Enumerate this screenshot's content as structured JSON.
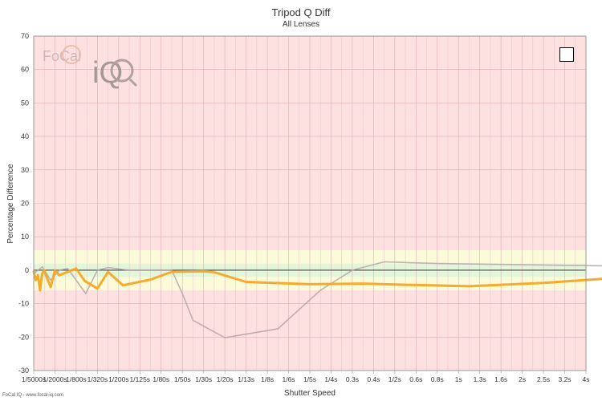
{
  "chart_data": {
    "type": "line",
    "title": "Tripod Q Diff",
    "subtitle": "All Lenses",
    "xlabel": "Shutter Speed",
    "ylabel": "Percentage Difference",
    "ylim": [
      -30,
      70
    ],
    "yticks": [
      70,
      60,
      50,
      40,
      30,
      20,
      10,
      0,
      -10,
      -20,
      -30
    ],
    "categories": [
      "1/5000s",
      "1/2000s",
      "1/800s",
      "1/320s",
      "1/200s",
      "1/125s",
      "1/80s",
      "1/50s",
      "1/30s",
      "1/20s",
      "1/13s",
      "1/8s",
      "1/6s",
      "1/5s",
      "1/4s",
      "0.3s",
      "0.4s",
      "1/2s",
      "0.6s",
      "0.8s",
      "1s",
      "1.3s",
      "1.6s",
      "2s",
      "2.5s",
      "3.2s",
      "4s"
    ],
    "bands": [
      {
        "from": 5,
        "to": 70,
        "color": "#fde0e0"
      },
      {
        "from": -6,
        "to": 6,
        "color": "#fbfbd9"
      },
      {
        "from": -2,
        "to": 2,
        "color": "#e4f6d9"
      },
      {
        "from": -30,
        "to": -6,
        "color": "#fde0e0"
      }
    ],
    "series": [
      {
        "color": "#b5a5aa",
        "points": [
          [
            0,
            -1
          ],
          [
            0.4,
            1
          ],
          [
            0.8,
            -3
          ],
          [
            1.2,
            0
          ],
          [
            1.6,
            0.5
          ],
          [
            2.0,
            -3
          ],
          [
            2.45,
            -7
          ],
          [
            3.0,
            0
          ],
          [
            3.5,
            0.8
          ],
          [
            4.5,
            0
          ],
          [
            6.5,
            0
          ],
          [
            7.0,
            -7
          ],
          [
            7.5,
            -15
          ],
          [
            9.0,
            -20.2
          ],
          [
            11.5,
            -17.5
          ],
          [
            13.5,
            -6
          ],
          [
            15.0,
            0
          ],
          [
            16.5,
            2.5
          ],
          [
            19.0,
            2
          ],
          [
            27.0,
            1.3
          ]
        ]
      },
      {
        "color": "#f5a623",
        "points": [
          [
            0,
            -0.5
          ],
          [
            0.1,
            -3
          ],
          [
            0.2,
            -1.5
          ],
          [
            0.3,
            -6
          ],
          [
            0.4,
            -1
          ],
          [
            0.5,
            0
          ],
          [
            0.6,
            -2
          ],
          [
            0.8,
            -5
          ],
          [
            1.0,
            0
          ],
          [
            1.2,
            -1.5
          ],
          [
            1.6,
            -0.5
          ],
          [
            2.0,
            0.5
          ],
          [
            2.4,
            -3.2
          ],
          [
            3.0,
            -5.5
          ],
          [
            3.5,
            -0.5
          ],
          [
            4.2,
            -4.5
          ],
          [
            5.5,
            -2.8
          ],
          [
            6.5,
            -0.5
          ],
          [
            8.0,
            -0.3
          ],
          [
            8.5,
            -0.6
          ],
          [
            10.0,
            -3.5
          ],
          [
            13.0,
            -4.2
          ],
          [
            15.5,
            -4.0
          ],
          [
            17.0,
            -4.3
          ],
          [
            20.5,
            -4.8
          ],
          [
            24.0,
            -3.8
          ],
          [
            27.0,
            -2.5
          ]
        ]
      }
    ]
  },
  "footer": "FoCal IQ - www.focal-iq.com",
  "watermark": {
    "text": "FoCal",
    "suffix": "iQ"
  }
}
